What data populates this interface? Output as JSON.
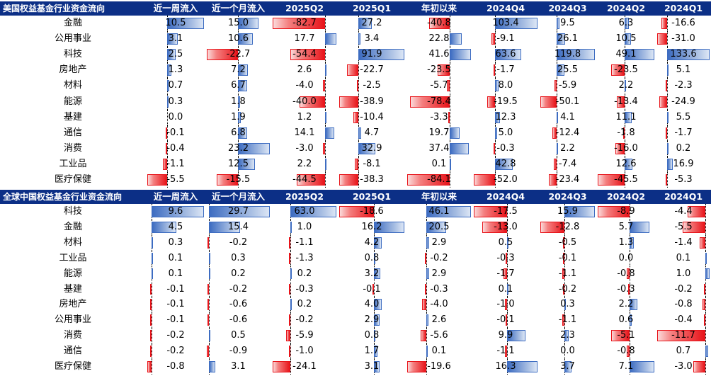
{
  "columns": [
    "近一周流入",
    "近一个月流入",
    "2025Q2",
    "2025Q1",
    "年初以来",
    "2024Q4",
    "2024Q3",
    "2024Q2",
    "2024Q1"
  ],
  "colors": {
    "header_bg": "#0c2f86",
    "positive": "#3d6cc1",
    "negative": "#e8141a"
  },
  "us": {
    "title": "美国权益基金行业资金流向",
    "rows": [
      {
        "name": "金融",
        "values": [
          10.5,
          15.0,
          -82.7,
          27.2,
          -40.8,
          103.4,
          9.5,
          6.3,
          -16.6
        ]
      },
      {
        "name": "公用事业",
        "values": [
          3.1,
          10.6,
          17.7,
          3.4,
          22.8,
          -9.1,
          26.1,
          10.5,
          -31.0
        ]
      },
      {
        "name": "科技",
        "values": [
          2.5,
          -22.7,
          -54.4,
          91.9,
          41.6,
          63.6,
          119.8,
          49.1,
          133.6
        ]
      },
      {
        "name": "房地产",
        "values": [
          1.3,
          7.2,
          2.6,
          -22.7,
          -23.5,
          -1.7,
          25.5,
          -23.5,
          5.1
        ]
      },
      {
        "name": "材料",
        "values": [
          0.7,
          6.7,
          -4.0,
          -2.5,
          -5.7,
          8.0,
          -5.9,
          2.2,
          -2.3
        ]
      },
      {
        "name": "能源",
        "values": [
          0.3,
          1.8,
          -40.0,
          -38.9,
          -78.4,
          -19.5,
          -50.1,
          -13.4,
          -24.9
        ]
      },
      {
        "name": "基建",
        "values": [
          0.0,
          1.9,
          1.2,
          -10.4,
          -3.3,
          12.3,
          4.1,
          11.1,
          5.5
        ]
      },
      {
        "name": "通信",
        "values": [
          -0.1,
          6.8,
          14.1,
          4.7,
          19.7,
          5.0,
          -12.4,
          -1.8,
          -1.7
        ]
      },
      {
        "name": "消费",
        "values": [
          -0.4,
          23.2,
          -3.0,
          32.9,
          37.4,
          -0.3,
          2.2,
          -16.0,
          0.2
        ]
      },
      {
        "name": "工业品",
        "values": [
          -1.1,
          12.5,
          2.2,
          -8.1,
          0.1,
          42.8,
          -7.4,
          12.6,
          16.9
        ]
      },
      {
        "name": "医疗保健",
        "values": [
          -5.5,
          -15.5,
          -44.5,
          -38.3,
          -84.1,
          -52.0,
          -23.4,
          -45.5,
          -5.3
        ]
      }
    ]
  },
  "cn": {
    "title": "全球中国权益基金行业资金流向",
    "rows": [
      {
        "name": "科技",
        "values": [
          9.6,
          29.7,
          63.0,
          -18.6,
          46.1,
          -17.5,
          15.9,
          -8.9,
          -4.4
        ]
      },
      {
        "name": "金融",
        "values": [
          4.5,
          15.4,
          1.0,
          16.2,
          20.5,
          -13.0,
          -12.8,
          5.7,
          -5.5
        ]
      },
      {
        "name": "材料",
        "values": [
          0.3,
          -0.2,
          -1.1,
          4.2,
          2.9,
          0.5,
          -0.5,
          1.3,
          -1.4
        ]
      },
      {
        "name": "工业品",
        "values": [
          0.1,
          0.3,
          -1.3,
          0.8,
          -0.2,
          -0.3,
          -0.1,
          0.0,
          0.1
        ]
      },
      {
        "name": "能源",
        "values": [
          0.1,
          0.2,
          0.2,
          3.2,
          2.9,
          -1.7,
          -1.1,
          -0.8,
          1.0
        ]
      },
      {
        "name": "基建",
        "values": [
          -0.1,
          -0.2,
          -0.3,
          -0.1,
          -0.3,
          0.1,
          -0.2,
          -0.3,
          -0.2
        ]
      },
      {
        "name": "房地产",
        "values": [
          -0.1,
          -0.6,
          0.2,
          4.0,
          -4.0,
          -1.0,
          0.3,
          2.2,
          -0.8
        ]
      },
      {
        "name": "公用事业",
        "values": [
          -0.1,
          -0.6,
          -0.2,
          2.9,
          2.6,
          -0.1,
          -1.1,
          0.6,
          -0.4
        ]
      },
      {
        "name": "消费",
        "values": [
          -0.2,
          0.5,
          -5.9,
          0.8,
          -5.6,
          9.9,
          2.3,
          -5.1,
          -11.7
        ]
      },
      {
        "name": "通信",
        "values": [
          -0.2,
          -0.9,
          -1.0,
          1.7,
          0.1,
          -1.1,
          0.0,
          -0.8,
          0.7
        ]
      },
      {
        "name": "医疗保健",
        "values": [
          -0.8,
          3.1,
          -24.1,
          3.1,
          -19.6,
          16.3,
          3.7,
          7.1,
          -3.0
        ]
      }
    ]
  }
}
